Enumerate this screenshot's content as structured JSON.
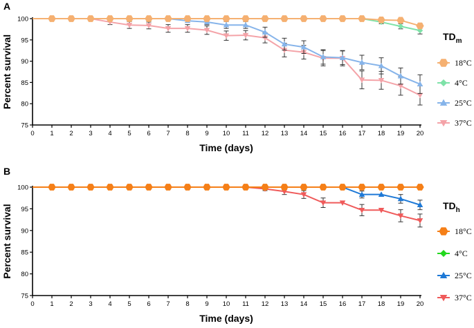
{
  "chart_data": [
    {
      "type": "line",
      "panel_label": "A",
      "xlabel": "Time (days)",
      "ylabel": "Percent survival",
      "xlim": [
        0,
        20
      ],
      "ylim": [
        75,
        100
      ],
      "x_ticks": [
        0,
        1,
        2,
        3,
        4,
        5,
        6,
        7,
        8,
        9,
        10,
        11,
        12,
        13,
        14,
        15,
        16,
        17,
        18,
        19,
        20
      ],
      "y_ticks": [
        75,
        80,
        85,
        90,
        95,
        100
      ],
      "legend_title": "TD",
      "legend_title_sub": "m",
      "legend_position": "right",
      "x": [
        1,
        2,
        3,
        4,
        5,
        6,
        7,
        8,
        9,
        10,
        11,
        12,
        13,
        14,
        15,
        16,
        17,
        18,
        19,
        20
      ],
      "series": [
        {
          "name": "18°C",
          "color": "#F5B071",
          "marker": "hexagon",
          "values": [
            100,
            100,
            100,
            100,
            100,
            100,
            100,
            100,
            100,
            100,
            100,
            100,
            100,
            100,
            100,
            100,
            100,
            99.7,
            99.6,
            98.3
          ],
          "errors": [
            0,
            0,
            0,
            0,
            0,
            0,
            0,
            0,
            0,
            0,
            0,
            0,
            0,
            0,
            0,
            0,
            0,
            0.4,
            0.4,
            0.6
          ]
        },
        {
          "name": "4°C",
          "color": "#7EE2A8",
          "marker": "diamond",
          "values": [
            100,
            100,
            100,
            100,
            100,
            100,
            100,
            100,
            100,
            100,
            100,
            100,
            100,
            100,
            100,
            100,
            100,
            99.2,
            98.2,
            97.2
          ],
          "errors": [
            0,
            0,
            0,
            0,
            0,
            0,
            0,
            0,
            0,
            0,
            0,
            0,
            0,
            0,
            0,
            0,
            0,
            0.4,
            0.6,
            0.8
          ]
        },
        {
          "name": "25°C",
          "color": "#86B4EA",
          "marker": "triangle",
          "values": [
            100,
            100,
            100,
            100,
            100,
            100,
            100,
            99.5,
            99.2,
            98.5,
            98.5,
            96.8,
            94,
            93.3,
            91,
            90.8,
            89.7,
            88.9,
            86.5,
            84.6
          ],
          "errors": [
            0,
            0,
            0,
            0,
            0,
            0,
            0,
            0.4,
            0.6,
            0.8,
            0.8,
            1.2,
            1.4,
            1.5,
            1.7,
            1.6,
            1.7,
            1.9,
            1.9,
            2.2
          ]
        },
        {
          "name": "37°C",
          "color": "#F4A3A8",
          "marker": "triangle-down",
          "values": [
            100,
            100,
            100,
            99.2,
            98.5,
            98.4,
            97.7,
            97.7,
            97.3,
            96,
            96.1,
            95.5,
            92.6,
            92.1,
            90.7,
            90.7,
            85.6,
            85.5,
            84.2,
            82
          ],
          "errors": [
            0,
            0,
            0,
            0.6,
            0.8,
            0.8,
            0.9,
            0.9,
            1,
            1.1,
            1.1,
            1.2,
            1.6,
            1.6,
            1.8,
            1.8,
            2.1,
            2.1,
            2.2,
            2.3
          ]
        }
      ]
    },
    {
      "type": "line",
      "panel_label": "B",
      "xlabel": "Time (days)",
      "ylabel": "Percent survival",
      "xlim": [
        0,
        20
      ],
      "ylim": [
        75,
        100
      ],
      "x_ticks": [
        0,
        1,
        2,
        3,
        4,
        5,
        6,
        7,
        8,
        9,
        10,
        11,
        12,
        13,
        14,
        15,
        16,
        17,
        18,
        19,
        20
      ],
      "y_ticks": [
        75,
        80,
        85,
        90,
        95,
        100
      ],
      "legend_title": "TD",
      "legend_title_sub": "h",
      "legend_position": "right",
      "x": [
        1,
        2,
        3,
        4,
        5,
        6,
        7,
        8,
        9,
        10,
        11,
        12,
        13,
        14,
        15,
        16,
        17,
        18,
        19,
        20
      ],
      "series": [
        {
          "name": "18°C",
          "color": "#F57F17",
          "marker": "hexagon",
          "values": [
            100,
            100,
            100,
            100,
            100,
            100,
            100,
            100,
            100,
            100,
            100,
            100,
            100,
            100,
            100,
            100,
            100,
            100,
            100,
            100
          ],
          "errors": [
            0,
            0,
            0,
            0,
            0,
            0,
            0,
            0,
            0,
            0,
            0,
            0,
            0,
            0,
            0,
            0,
            0,
            0,
            0,
            0
          ]
        },
        {
          "name": "4°C",
          "color": "#22D81E",
          "marker": "diamond",
          "values": [
            100,
            100,
            100,
            100,
            100,
            100,
            100,
            100,
            100,
            100,
            100,
            100,
            100,
            100,
            100,
            100,
            100,
            100,
            100,
            100
          ],
          "errors": [
            0,
            0,
            0,
            0,
            0,
            0,
            0,
            0,
            0,
            0,
            0,
            0,
            0,
            0,
            0,
            0,
            0,
            0,
            0,
            0
          ]
        },
        {
          "name": "25°C",
          "color": "#1E79D6",
          "marker": "triangle",
          "values": [
            100,
            100,
            100,
            100,
            100,
            100,
            100,
            100,
            100,
            100,
            100,
            100,
            100,
            100,
            100,
            100,
            98.3,
            98.3,
            97.3,
            95.9
          ],
          "errors": [
            0,
            0,
            0,
            0,
            0,
            0,
            0,
            0,
            0,
            0,
            0,
            0,
            0,
            0,
            0,
            0,
            0.8,
            0,
            1,
            1.1
          ]
        },
        {
          "name": "37°C",
          "color": "#EF5A5A",
          "marker": "triangle-down",
          "values": [
            100,
            100,
            100,
            100,
            100,
            100,
            100,
            100,
            100,
            100,
            100,
            99.6,
            99,
            98.3,
            96.4,
            96.4,
            94.7,
            94.7,
            93.4,
            92.3
          ],
          "errors": [
            0,
            0,
            0,
            0,
            0,
            0,
            0,
            0,
            0,
            0,
            0,
            0.4,
            0.7,
            0.9,
            1.1,
            0,
            1.3,
            0,
            1.4,
            1.5
          ]
        }
      ]
    }
  ]
}
